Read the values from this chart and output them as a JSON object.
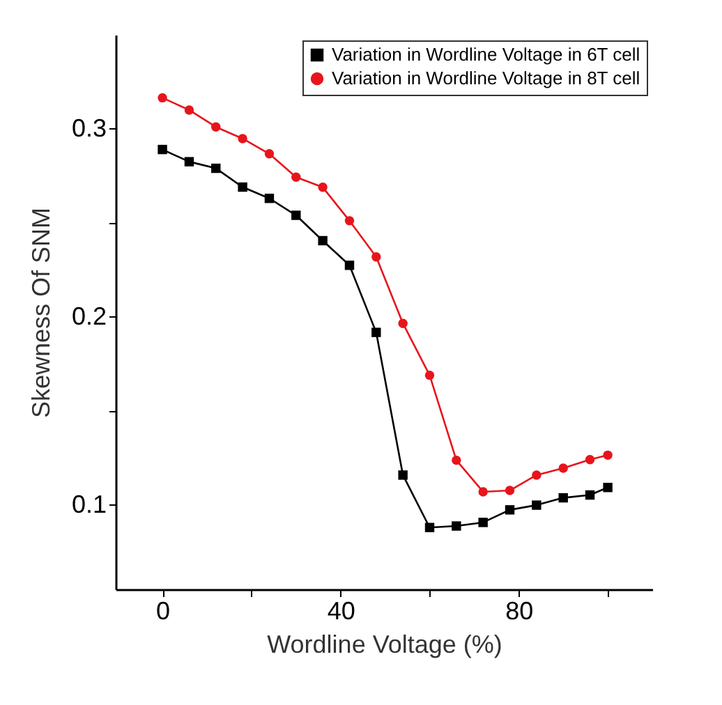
{
  "chart_data": {
    "type": "line",
    "xlabel": "Wordline Voltage (%)",
    "ylabel": "Skewness Of SNM",
    "x": [
      0,
      6,
      12,
      18,
      24,
      30,
      36,
      42,
      48,
      54,
      60,
      66,
      72,
      78,
      84,
      90,
      96,
      100
    ],
    "series": [
      {
        "name": "Variation in Wordline Voltage in 6T cell",
        "color": "#000000",
        "marker": "square",
        "values": [
          0.289,
          0.2825,
          0.279,
          0.269,
          0.263,
          0.254,
          0.2405,
          0.2274,
          0.1917,
          0.1158,
          0.0879,
          0.0887,
          0.0906,
          0.0973,
          0.0998,
          0.1037,
          0.1052,
          0.1092
        ]
      },
      {
        "name": "Variation in Wordline Voltage in 8T cell",
        "color": "#e8141c",
        "marker": "circle",
        "values": [
          0.3165,
          0.31,
          0.301,
          0.2948,
          0.2867,
          0.2743,
          0.2689,
          0.2511,
          0.2319,
          0.1965,
          0.1689,
          0.1237,
          0.1069,
          0.1076,
          0.1158,
          0.1195,
          0.124,
          0.1264
        ]
      }
    ],
    "xlim": [
      -10.5,
      110
    ],
    "ylim": [
      0.055,
      0.35
    ],
    "xticks": [
      0,
      {
        "value": 20,
        "label": null
      },
      40,
      {
        "value": 60,
        "label": null
      },
      80,
      {
        "value": 100,
        "label": null
      }
    ],
    "yticks": [
      0.1,
      {
        "value": 0.15,
        "label": null
      },
      0.2,
      {
        "value": 0.25,
        "label": null
      },
      0.3
    ],
    "grid": false,
    "legend": "top right",
    "line_style": "solid"
  }
}
